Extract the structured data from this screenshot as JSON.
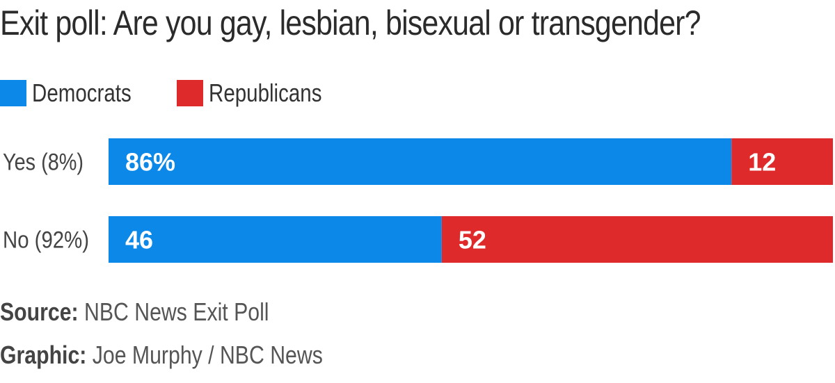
{
  "chart_data": {
    "type": "bar",
    "orientation": "horizontal",
    "stacked": true,
    "title": "Exit poll: Are you gay, lesbian, bisexual or transgender?",
    "categories": [
      "Yes (8%)",
      "No (92%)"
    ],
    "series": [
      {
        "name": "Democrats",
        "color": "#0b88e8",
        "values": [
          86,
          46
        ],
        "labels": [
          "86%",
          "46"
        ]
      },
      {
        "name": "Republicans",
        "color": "#de2a2a",
        "values": [
          12,
          52
        ],
        "labels": [
          "12",
          "52"
        ]
      }
    ],
    "xlim": [
      0,
      100
    ],
    "grid": false,
    "legend_position": "top-left"
  },
  "footer": {
    "source_label": "Source:",
    "source_value": "NBC News Exit Poll",
    "graphic_label": "Graphic:",
    "graphic_value": "Joe Murphy / NBC News"
  }
}
